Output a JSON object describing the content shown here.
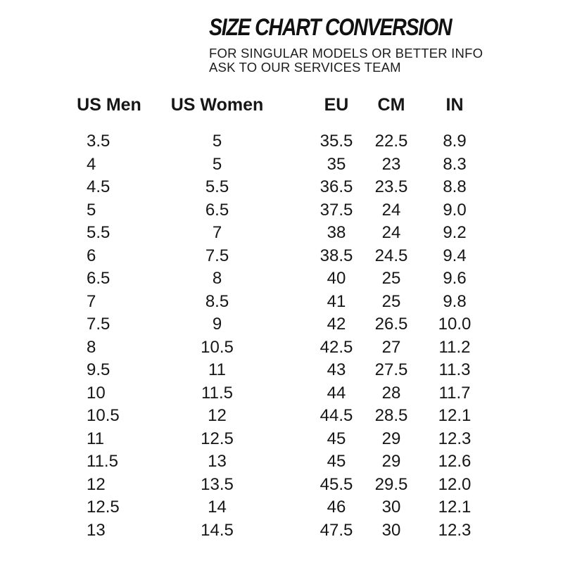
{
  "header": {
    "title": "SIZE CHART CONVERSION",
    "subtitle_line1": "FOR SINGULAR MODELS OR BETTER INFO",
    "subtitle_line2": "ASK TO OUR SERVICES TEAM"
  },
  "colors": {
    "background": "#ffffff",
    "text": "#161616"
  },
  "chart_data": {
    "type": "table",
    "title": "SIZE CHART CONVERSION",
    "columns": [
      "US Men",
      "US Women",
      "EU",
      "CM",
      "IN"
    ],
    "rows": [
      [
        "3.5",
        "5",
        "35.5",
        "22.5",
        "8.9"
      ],
      [
        "4",
        "5",
        "35",
        "23",
        "8.3"
      ],
      [
        "4.5",
        "5.5",
        "36.5",
        "23.5",
        "8.8"
      ],
      [
        "5",
        "6.5",
        "37.5",
        "24",
        "9.0"
      ],
      [
        "5.5",
        "7",
        "38",
        "24",
        "9.2"
      ],
      [
        "6",
        "7.5",
        "38.5",
        "24.5",
        "9.4"
      ],
      [
        "6.5",
        "8",
        "40",
        "25",
        "9.6"
      ],
      [
        "7",
        "8.5",
        "41",
        "25",
        "9.8"
      ],
      [
        "7.5",
        "9",
        "42",
        "26.5",
        "10.0"
      ],
      [
        "8",
        "10.5",
        "42.5",
        "27",
        "11.2"
      ],
      [
        "9.5",
        "11",
        "43",
        "27.5",
        "11.3"
      ],
      [
        "10",
        "11.5",
        "44",
        "28",
        "11.7"
      ],
      [
        "10.5",
        "12",
        "44.5",
        "28.5",
        "12.1"
      ],
      [
        "11",
        "12.5",
        "45",
        "29",
        "12.3"
      ],
      [
        "11.5",
        "13",
        "45",
        "29",
        "12.6"
      ],
      [
        "12",
        "13.5",
        "45.5",
        "29.5",
        "12.0"
      ],
      [
        "12.5",
        "14",
        "46",
        "30",
        "12.1"
      ],
      [
        "13",
        "14.5",
        "47.5",
        "30",
        "12.3"
      ]
    ]
  }
}
